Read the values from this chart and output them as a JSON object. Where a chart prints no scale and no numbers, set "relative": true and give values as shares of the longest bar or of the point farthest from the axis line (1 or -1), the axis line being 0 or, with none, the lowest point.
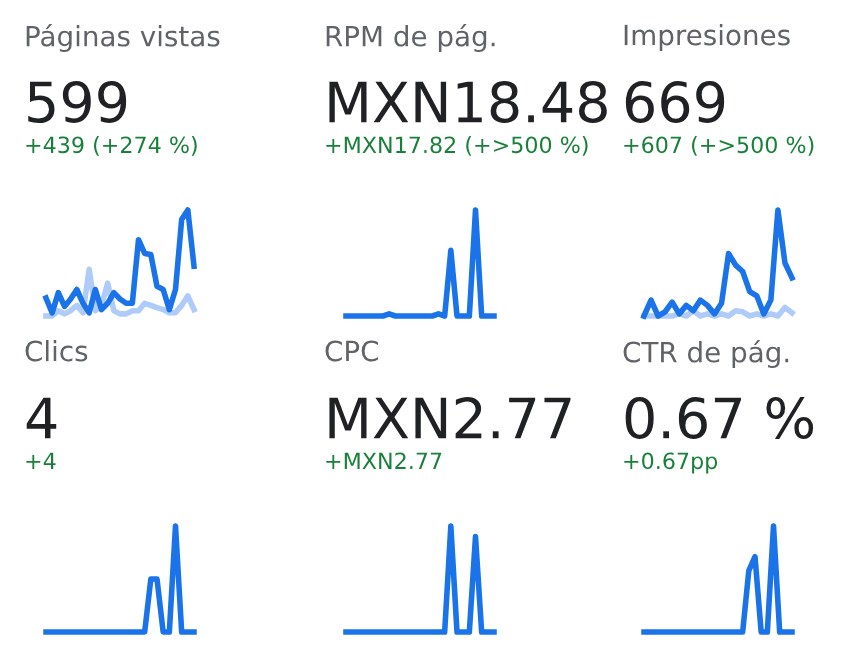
{
  "chart_data": [
    {
      "type": "line",
      "relative": true,
      "title": "Páginas vistas",
      "annotations": [
        "599",
        "+439 (+274 %)"
      ],
      "categories": [
        null,
        null,
        null,
        null,
        null,
        null,
        null,
        null,
        null,
        null,
        null,
        null,
        null,
        null,
        null,
        null,
        null,
        null,
        null,
        null,
        null,
        null,
        null,
        null,
        null
      ],
      "series": [
        {
          "color": "#aecbfa",
          "values": [
            0,
            0,
            0.05,
            0.02,
            0.05,
            0.1,
            0.03,
            0.44,
            0.05,
            0.1,
            0.31,
            0.05,
            0.02,
            0.02,
            0.05,
            0.05,
            0.12,
            0.1,
            0.08,
            0.06,
            0.03,
            0.03,
            0.1,
            0.19,
            0.06
          ]
        },
        {
          "color": "#1a73e8",
          "values": [
            0.17,
            0.03,
            0.22,
            0.09,
            0.16,
            0.25,
            0.12,
            0.03,
            0.25,
            0.06,
            0.12,
            0.22,
            0.16,
            0.12,
            0.12,
            0.72,
            0.59,
            0.58,
            0.28,
            0.25,
            0.06,
            0.25,
            0.91,
            1.0,
            0.47
          ]
        }
      ]
    },
    {
      "type": "line",
      "relative": true,
      "title": "RPM de pág.",
      "annotations": [
        "MXN18.48",
        "+MXN17.82 (+>500 %)"
      ],
      "categories": [
        null,
        null,
        null,
        null,
        null,
        null,
        null,
        null,
        null,
        null,
        null,
        null,
        null,
        null,
        null,
        null,
        null,
        null,
        null,
        null,
        null,
        null,
        null,
        null,
        null
      ],
      "series": [
        {
          "color": "#1a73e8",
          "values": [
            0,
            0,
            0,
            0,
            0,
            0,
            0,
            0.02,
            0,
            0,
            0,
            0,
            0,
            0,
            0,
            0.02,
            0,
            0.62,
            0,
            0,
            0,
            1.0,
            0,
            0,
            0
          ]
        }
      ]
    },
    {
      "type": "line",
      "relative": true,
      "title": "Impresiones",
      "annotations": [
        "669",
        "+607 (+>500 %)"
      ],
      "categories": [
        null,
        null,
        null,
        null,
        null,
        null,
        null,
        null,
        null,
        null,
        null,
        null,
        null,
        null,
        null,
        null,
        null,
        null,
        null,
        null,
        null,
        null
      ],
      "series": [
        {
          "color": "#aecbfa",
          "values": [
            0,
            0,
            0,
            0,
            0,
            0.02,
            0,
            0.05,
            0,
            0.02,
            0,
            0.02,
            0,
            0.05,
            0.04,
            0,
            0.02,
            0,
            0.02,
            0,
            0.08,
            0.03
          ]
        },
        {
          "color": "#1a73e8",
          "values": [
            0,
            0.15,
            0,
            0.04,
            0.13,
            0.02,
            0.1,
            0.05,
            0.15,
            0.1,
            0.02,
            0.12,
            0.59,
            0.48,
            0.42,
            0.23,
            0.19,
            0.02,
            0.15,
            1.0,
            0.5,
            0.36
          ]
        }
      ]
    },
    {
      "type": "line",
      "relative": true,
      "title": "Clics",
      "annotations": [
        "4",
        "+4"
      ],
      "categories": [
        null,
        null,
        null,
        null,
        null,
        null,
        null,
        null,
        null,
        null,
        null,
        null,
        null,
        null,
        null,
        null,
        null,
        null,
        null,
        null,
        null,
        null,
        null,
        null,
        null
      ],
      "series": [
        {
          "color": "#1a73e8",
          "values": [
            0,
            0,
            0,
            0,
            0,
            0,
            0,
            0,
            0,
            0,
            0,
            0,
            0,
            0,
            0,
            0,
            0,
            0.5,
            0.5,
            0,
            0,
            1.0,
            0,
            0,
            0
          ]
        }
      ]
    },
    {
      "type": "line",
      "relative": true,
      "title": "CPC",
      "annotations": [
        "MXN2.77",
        "+MXN2.77"
      ],
      "categories": [
        null,
        null,
        null,
        null,
        null,
        null,
        null,
        null,
        null,
        null,
        null,
        null,
        null,
        null,
        null,
        null,
        null,
        null,
        null,
        null,
        null,
        null,
        null,
        null,
        null
      ],
      "series": [
        {
          "color": "#1a73e8",
          "values": [
            0,
            0,
            0,
            0,
            0,
            0,
            0,
            0,
            0,
            0,
            0,
            0,
            0,
            0,
            0,
            0,
            0,
            1.0,
            0,
            0,
            0,
            0.9,
            0,
            0,
            0
          ]
        }
      ]
    },
    {
      "type": "line",
      "relative": true,
      "title": "CTR de pág.",
      "annotations": [
        "0.67 %",
        "+0.67pp"
      ],
      "categories": [
        null,
        null,
        null,
        null,
        null,
        null,
        null,
        null,
        null,
        null,
        null,
        null,
        null,
        null,
        null,
        null,
        null,
        null,
        null,
        null,
        null,
        null,
        null,
        null,
        null
      ],
      "series": [
        {
          "color": "#1a73e8",
          "values": [
            0,
            0,
            0,
            0,
            0,
            0,
            0,
            0,
            0,
            0,
            0,
            0,
            0,
            0,
            0,
            0,
            0,
            0.58,
            0.71,
            0,
            0,
            1.0,
            0,
            0,
            0
          ]
        }
      ]
    }
  ]
}
